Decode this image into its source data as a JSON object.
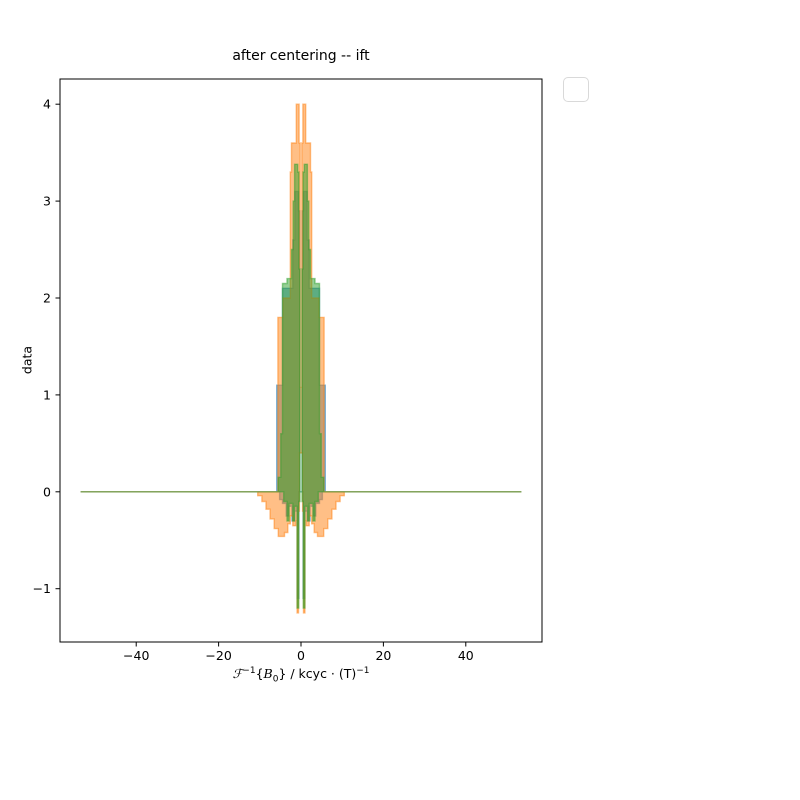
{
  "figure": {
    "title": "after centering -- ift",
    "ylabel": "data",
    "xlabel_parts": {
      "mathcal_f": "ℱ",
      "f_exp": "−1",
      "open_brace": "{",
      "symbol": "B",
      "symbol_sub": "0",
      "close_rest": "} / kcyc · (T)",
      "t_exp": "−1"
    },
    "legend": {
      "state": "empty",
      "border_color": "#d9d9d9"
    },
    "background_color": "#ffffff",
    "spine_color": "#000000"
  },
  "chart_data": {
    "type": "line",
    "title": "after centering -- ift",
    "xlabel": "F^{-1}{B_0} / kcyc·(T)^{-1}",
    "ylabel": "data",
    "xlim": [
      -58.5,
      58.5
    ],
    "ylim": [
      -1.55,
      4.26
    ],
    "xticks": [
      -40,
      -20,
      0,
      20,
      40
    ],
    "yticks": [
      -1,
      0,
      1,
      2,
      3,
      4
    ],
    "xtick_labels": [
      "−40",
      "−20",
      "0",
      "20",
      "40"
    ],
    "ytick_labels": [
      "−1",
      "0",
      "1",
      "2",
      "3",
      "4"
    ],
    "grid": false,
    "legend_position": "upper right (empty)",
    "alpha": 0.5,
    "description": "Three overlapping translucent ift traces; flat at 0 for |x|>~10, dense oscillating cluster near x=0 rendered as filled envelopes.",
    "data_x_extent": [
      -53.5,
      53.5
    ],
    "series": [
      {
        "name": "series-0-blue",
        "color": "#1f77b4",
        "upper": [
          [
            -53.5,
            0
          ],
          [
            -5.9,
            1.1
          ],
          [
            -4.5,
            2.1
          ],
          [
            -2.0,
            2.6
          ],
          [
            -1.5,
            3.1
          ],
          [
            -0.6,
            2.9
          ],
          [
            -0.3,
            0
          ],
          [
            0.3,
            2.9
          ],
          [
            0.6,
            3.1
          ],
          [
            1.5,
            2.6
          ],
          [
            2.0,
            2.1
          ],
          [
            4.5,
            1.1
          ],
          [
            5.9,
            0
          ],
          [
            53.5,
            0
          ]
        ],
        "lower": [
          [
            -53.5,
            0
          ],
          [
            -5.2,
            -0.08
          ],
          [
            -4.5,
            -0.12
          ],
          [
            -3.6,
            -0.25
          ],
          [
            -3.0,
            -0.15
          ],
          [
            -2.2,
            -0.3
          ],
          [
            -1.5,
            -0.2
          ],
          [
            -0.9,
            -1.1
          ],
          [
            -0.5,
            0
          ],
          [
            0.5,
            -1.1
          ],
          [
            0.9,
            -0.2
          ],
          [
            1.5,
            -0.3
          ],
          [
            2.2,
            -0.15
          ],
          [
            3.0,
            -0.25
          ],
          [
            3.6,
            -0.12
          ],
          [
            4.5,
            -0.08
          ],
          [
            5.2,
            0
          ],
          [
            53.5,
            0
          ]
        ]
      },
      {
        "name": "series-1-orange",
        "color": "#ff7f0e",
        "upper": [
          [
            -53.5,
            0
          ],
          [
            -5.6,
            1.8
          ],
          [
            -4.4,
            2.0
          ],
          [
            -2.6,
            3.3
          ],
          [
            -2.3,
            3.6
          ],
          [
            -1.15,
            4.0
          ],
          [
            -0.45,
            3.6
          ],
          [
            -0.2,
            1.08
          ],
          [
            0.2,
            3.6
          ],
          [
            0.45,
            4.0
          ],
          [
            1.15,
            3.6
          ],
          [
            2.3,
            3.3
          ],
          [
            2.6,
            2.0
          ],
          [
            4.4,
            1.8
          ],
          [
            5.6,
            0
          ],
          [
            53.5,
            0
          ]
        ],
        "lower": [
          [
            -53.5,
            0
          ],
          [
            -10.5,
            -0.04
          ],
          [
            -9.5,
            -0.1
          ],
          [
            -8.5,
            -0.18
          ],
          [
            -7.5,
            -0.28
          ],
          [
            -6.5,
            -0.38
          ],
          [
            -5.5,
            -0.46
          ],
          [
            -4.0,
            -0.42
          ],
          [
            -3.2,
            -0.33
          ],
          [
            -2.6,
            -0.25
          ],
          [
            -2.0,
            -0.35
          ],
          [
            -1.2,
            -0.3
          ],
          [
            -0.95,
            -1.25
          ],
          [
            -0.6,
            -0.2
          ],
          [
            -0.4,
            0.4
          ],
          [
            0.4,
            -0.2
          ],
          [
            0.6,
            -1.25
          ],
          [
            0.95,
            -0.3
          ],
          [
            1.2,
            -0.35
          ],
          [
            2.0,
            -0.25
          ],
          [
            2.6,
            -0.33
          ],
          [
            3.2,
            -0.42
          ],
          [
            4.0,
            -0.46
          ],
          [
            5.5,
            -0.38
          ],
          [
            6.5,
            -0.28
          ],
          [
            7.5,
            -0.18
          ],
          [
            8.5,
            -0.1
          ],
          [
            9.5,
            -0.04
          ],
          [
            10.5,
            0
          ],
          [
            53.5,
            0
          ]
        ]
      },
      {
        "name": "series-2-green",
        "color": "#2ca02c",
        "upper": [
          [
            -53.5,
            0
          ],
          [
            -5.5,
            0.15
          ],
          [
            -4.9,
            0.6
          ],
          [
            -4.5,
            2.15
          ],
          [
            -3.4,
            2.2
          ],
          [
            -2.3,
            2.5
          ],
          [
            -1.9,
            3.0
          ],
          [
            -1.55,
            3.38
          ],
          [
            -0.8,
            3.3
          ],
          [
            -0.5,
            2.3
          ],
          [
            -0.25,
            0
          ],
          [
            0.25,
            2.3
          ],
          [
            0.5,
            3.3
          ],
          [
            0.8,
            3.38
          ],
          [
            1.55,
            3.0
          ],
          [
            1.9,
            2.5
          ],
          [
            2.3,
            2.2
          ],
          [
            3.4,
            2.15
          ],
          [
            4.5,
            0.6
          ],
          [
            4.9,
            0.15
          ],
          [
            5.5,
            0
          ],
          [
            53.5,
            0
          ]
        ],
        "lower": [
          [
            -53.5,
            0
          ],
          [
            -4.2,
            -0.1
          ],
          [
            -3.4,
            -0.3
          ],
          [
            -2.9,
            -0.12
          ],
          [
            -2.0,
            -0.3
          ],
          [
            -1.6,
            -0.15
          ],
          [
            -0.95,
            -1.2
          ],
          [
            -0.55,
            -0.1
          ],
          [
            -0.25,
            0
          ],
          [
            0.25,
            -0.1
          ],
          [
            0.55,
            -1.2
          ],
          [
            0.95,
            -0.15
          ],
          [
            1.6,
            -0.3
          ],
          [
            2.0,
            -0.12
          ],
          [
            2.9,
            -0.3
          ],
          [
            3.4,
            -0.1
          ],
          [
            4.2,
            0
          ],
          [
            53.5,
            0
          ]
        ]
      }
    ]
  }
}
